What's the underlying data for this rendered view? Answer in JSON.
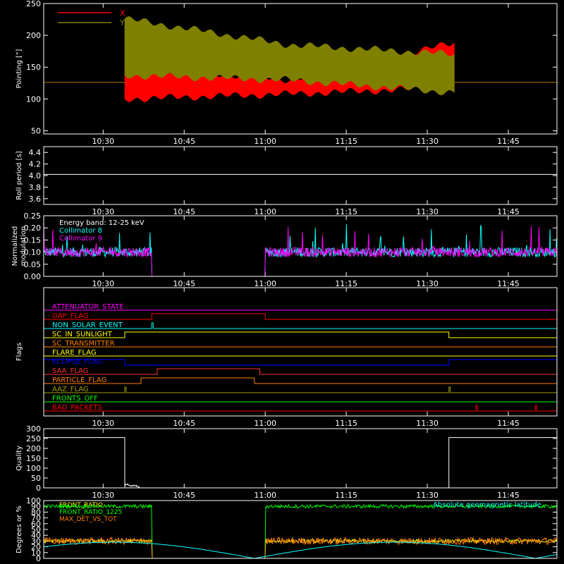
{
  "chart_data": [
    {
      "type": "line",
      "ylabel": "Pointing [\"]",
      "ylim": [
        45,
        250
      ],
      "yticks": [
        50,
        100,
        150,
        200,
        250
      ],
      "xticks": [
        "10:30",
        "10:45",
        "11:00",
        "11:15",
        "11:30",
        "11:45"
      ],
      "legend_position": "top-left",
      "series": [
        {
          "name": "X",
          "color": "#ff0000",
          "baseline": 126,
          "oscillation": {
            "start": "10:34",
            "end": "11:35",
            "upper_start": 152,
            "lower_start": 100,
            "upper_mid": 130,
            "lower_mid": 108,
            "upper_end": 188,
            "lower_end": 118
          }
        },
        {
          "name": "Y",
          "color": "#808000",
          "baseline": 126,
          "oscillation": {
            "start": "10:34",
            "end": "11:35",
            "upper_start": 226,
            "lower_start": 137,
            "upper_mid": 185,
            "lower_mid": 130,
            "upper_end": 170,
            "lower_end": 110
          }
        }
      ]
    },
    {
      "type": "line",
      "ylabel": "Roll period [s]",
      "ylim": [
        3.5,
        4.5
      ],
      "yticks": [
        3.6,
        3.8,
        4.0,
        4.2,
        4.4
      ],
      "xticks": [
        "10:30",
        "10:45",
        "11:00",
        "11:15",
        "11:30",
        "11:45"
      ],
      "series": [
        {
          "name": "",
          "color": "#ffffff",
          "value": 4.02
        }
      ]
    },
    {
      "type": "line",
      "ylabel": "Normalized modulation",
      "ylim": [
        0,
        0.25
      ],
      "yticks": [
        0.0,
        0.05,
        0.1,
        0.15,
        0.2,
        0.25
      ],
      "xticks": [
        "10:30",
        "10:45",
        "11:00",
        "11:15",
        "11:30",
        "11:45"
      ],
      "annotation": "Energy band: 12-25 keV",
      "gap": [
        "10:39",
        "11:00"
      ],
      "series": [
        {
          "name": "Collimator 8",
          "color": "#00ffff",
          "mean": 0.1
        },
        {
          "name": "Collimator 9",
          "color": "#ff00ff",
          "mean": 0.1
        }
      ]
    },
    {
      "type": "line",
      "ylabel": "Flags",
      "xticks": [
        "10:30",
        "10:45",
        "11:00",
        "11:15",
        "11:30",
        "11:45"
      ],
      "flags": [
        {
          "name": "ATTENUATOR_STATE",
          "color": "#ff00ff",
          "on": []
        },
        {
          "name": "GAP_FLAG",
          "color": "#ff0000",
          "on": [
            [
              "10:39",
              "11:00"
            ]
          ]
        },
        {
          "name": "NON_SOLAR_EVENT",
          "color": "#00ffff",
          "on": [
            [
              "10:39",
              "10:39"
            ]
          ]
        },
        {
          "name": "SC_IN_SUNLIGHT",
          "color": "#ffff00",
          "on": [
            [
              "10:34",
              "11:34"
            ]
          ]
        },
        {
          "name": "SC_TRANSMITTER",
          "color": "#ff7f00",
          "on": []
        },
        {
          "name": "FLARE_FLAG",
          "color": "#ffff00",
          "on": []
        },
        {
          "name": "ECLIPSE_FLAG",
          "color": "#0000ff",
          "on": [
            [
              "10:19",
              "10:34"
            ],
            [
              "11:34",
              "11:54"
            ]
          ]
        },
        {
          "name": "SAA_FLAG",
          "color": "#ff3030",
          "on": [
            [
              "10:40",
              "10:59"
            ]
          ]
        },
        {
          "name": "PARTICLE_FLAG",
          "color": "#ff7f00",
          "on": [
            [
              "10:37",
              "10:58"
            ]
          ]
        },
        {
          "name": "AAZ_FLAG",
          "color": "#a0a000",
          "on": [
            [
              "10:34",
              "10:34"
            ],
            [
              "11:34",
              "11:34"
            ]
          ]
        },
        {
          "name": "FRONTS_OFF",
          "color": "#00ff00",
          "on": []
        },
        {
          "name": "BAD_PACKETS",
          "color": "#ff0000",
          "on": [
            [
              "11:39",
              "11:39"
            ],
            [
              "11:50",
              "11:50"
            ]
          ]
        }
      ]
    },
    {
      "type": "line",
      "ylabel": "Quality",
      "ylim": [
        0,
        300
      ],
      "yticks": [
        0,
        50,
        100,
        150,
        200,
        250,
        300
      ],
      "xticks": [
        "10:30",
        "10:45",
        "11:00",
        "11:15",
        "11:30",
        "11:45"
      ],
      "series": [
        {
          "name": "",
          "color": "#ffffff",
          "segments": [
            {
              "from": "10:19",
              "to": "10:34",
              "value": 255
            },
            {
              "from": "10:34",
              "to": "11:34",
              "value": 0
            },
            {
              "from": "11:34",
              "to": "11:54",
              "value": 255
            }
          ]
        }
      ]
    },
    {
      "type": "line",
      "ylabel": "Degrees or %",
      "ylim": [
        0,
        100
      ],
      "yticks": [
        0,
        10,
        20,
        30,
        40,
        50,
        60,
        70,
        80,
        90,
        100
      ],
      "annotation": "Absolute geomagnetic latitude",
      "annotation_color": "#00ffff",
      "gap": [
        "10:39",
        "11:00"
      ],
      "series": [
        {
          "name": "FRONT_RATIO",
          "color": "#ffff00",
          "mean": 30
        },
        {
          "name": "FRONT_RATIO_1225",
          "color": "#00ff00",
          "mean": 90
        },
        {
          "name": "MAX_DET_VS_TOT",
          "color": "#ff7f00",
          "mean": 30
        },
        {
          "name": "Absolute geomagnetic latitude",
          "color": "#00ffff",
          "peak": 28,
          "zeros": [
            "10:58",
            "11:50"
          ]
        }
      ]
    }
  ]
}
